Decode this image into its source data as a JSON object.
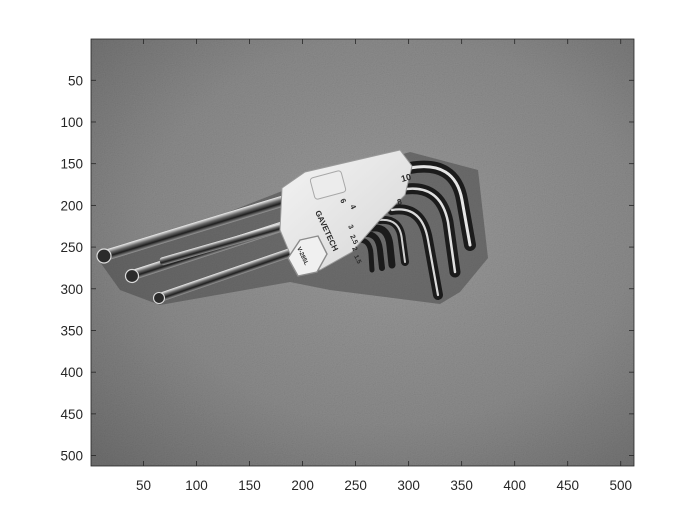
{
  "figure": {
    "image_subject": "hex-key-set-on-metal-surface",
    "colormap": "gray",
    "background_color": "#ffffff",
    "axes": {
      "x_ticks": [
        "50",
        "100",
        "150",
        "200",
        "250",
        "300",
        "350",
        "400",
        "450",
        "500"
      ],
      "y_ticks": [
        "50",
        "100",
        "150",
        "200",
        "250",
        "300",
        "350",
        "400",
        "450",
        "500"
      ],
      "x_range": [
        0.5,
        512.5
      ],
      "y_range": [
        0.5,
        512.5
      ],
      "y_direction": "down",
      "grid": false
    }
  },
  "holder_markings": {
    "brand": "GAVETECH",
    "model": "V-285L",
    "sizes_top": [
      "10",
      "8"
    ],
    "sizes_front": [
      "6",
      "4",
      "3",
      "2.5",
      "2",
      "1.5"
    ]
  }
}
